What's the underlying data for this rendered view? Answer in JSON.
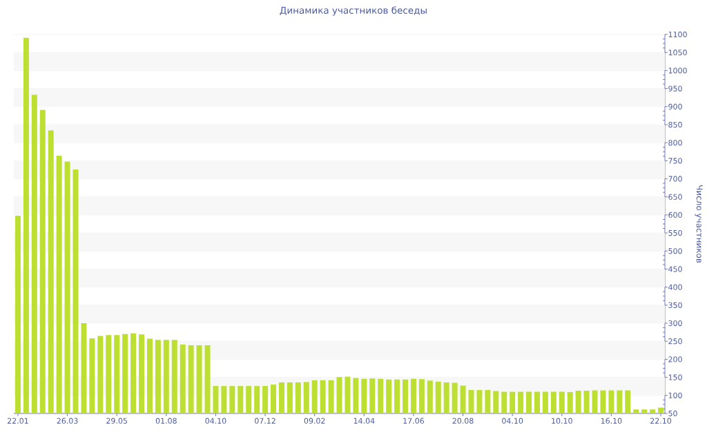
{
  "chart_data": {
    "type": "bar",
    "title": "Динамика участников беседы",
    "ylabel": "Число участников",
    "categories": [
      "22.01",
      null,
      null,
      null,
      null,
      null,
      "26.03",
      null,
      null,
      null,
      null,
      null,
      "29.05",
      null,
      null,
      null,
      null,
      null,
      "01.08",
      null,
      null,
      null,
      null,
      null,
      "04.10",
      null,
      null,
      null,
      null,
      null,
      "07.12",
      null,
      null,
      null,
      null,
      null,
      "09.02",
      null,
      null,
      null,
      null,
      null,
      "14.04",
      null,
      null,
      null,
      null,
      null,
      "17.06",
      null,
      null,
      null,
      null,
      null,
      "20.08",
      null,
      null,
      null,
      null,
      null,
      "04.10",
      null,
      null,
      null,
      null,
      null,
      "10.10",
      null,
      null,
      null,
      null,
      null,
      "16.10",
      null,
      null,
      null,
      null,
      null,
      "22.10"
    ],
    "values": [
      598,
      1091,
      933,
      891,
      834,
      764,
      748,
      726,
      300,
      258,
      265,
      267,
      267,
      270,
      272,
      269,
      257,
      254,
      254,
      254,
      241,
      239,
      239,
      239,
      126,
      126,
      126,
      126,
      126,
      126,
      126,
      130,
      136,
      136,
      136,
      137,
      142,
      142,
      142,
      151,
      152,
      148,
      146,
      147,
      146,
      144,
      144,
      144,
      146,
      145,
      141,
      138,
      136,
      135,
      127,
      115,
      115,
      115,
      112,
      110,
      110,
      110,
      110,
      110,
      110,
      110,
      110,
      109,
      113,
      113,
      114,
      114,
      114,
      114,
      114,
      61,
      61,
      61,
      66
    ],
    "color": "#bcdf32",
    "ylim": [
      50,
      1100
    ],
    "yticks": [
      50,
      100,
      150,
      200,
      250,
      300,
      350,
      400,
      450,
      500,
      550,
      600,
      650,
      700,
      750,
      800,
      850,
      900,
      950,
      1000,
      1050,
      1100
    ],
    "grid": "y"
  }
}
